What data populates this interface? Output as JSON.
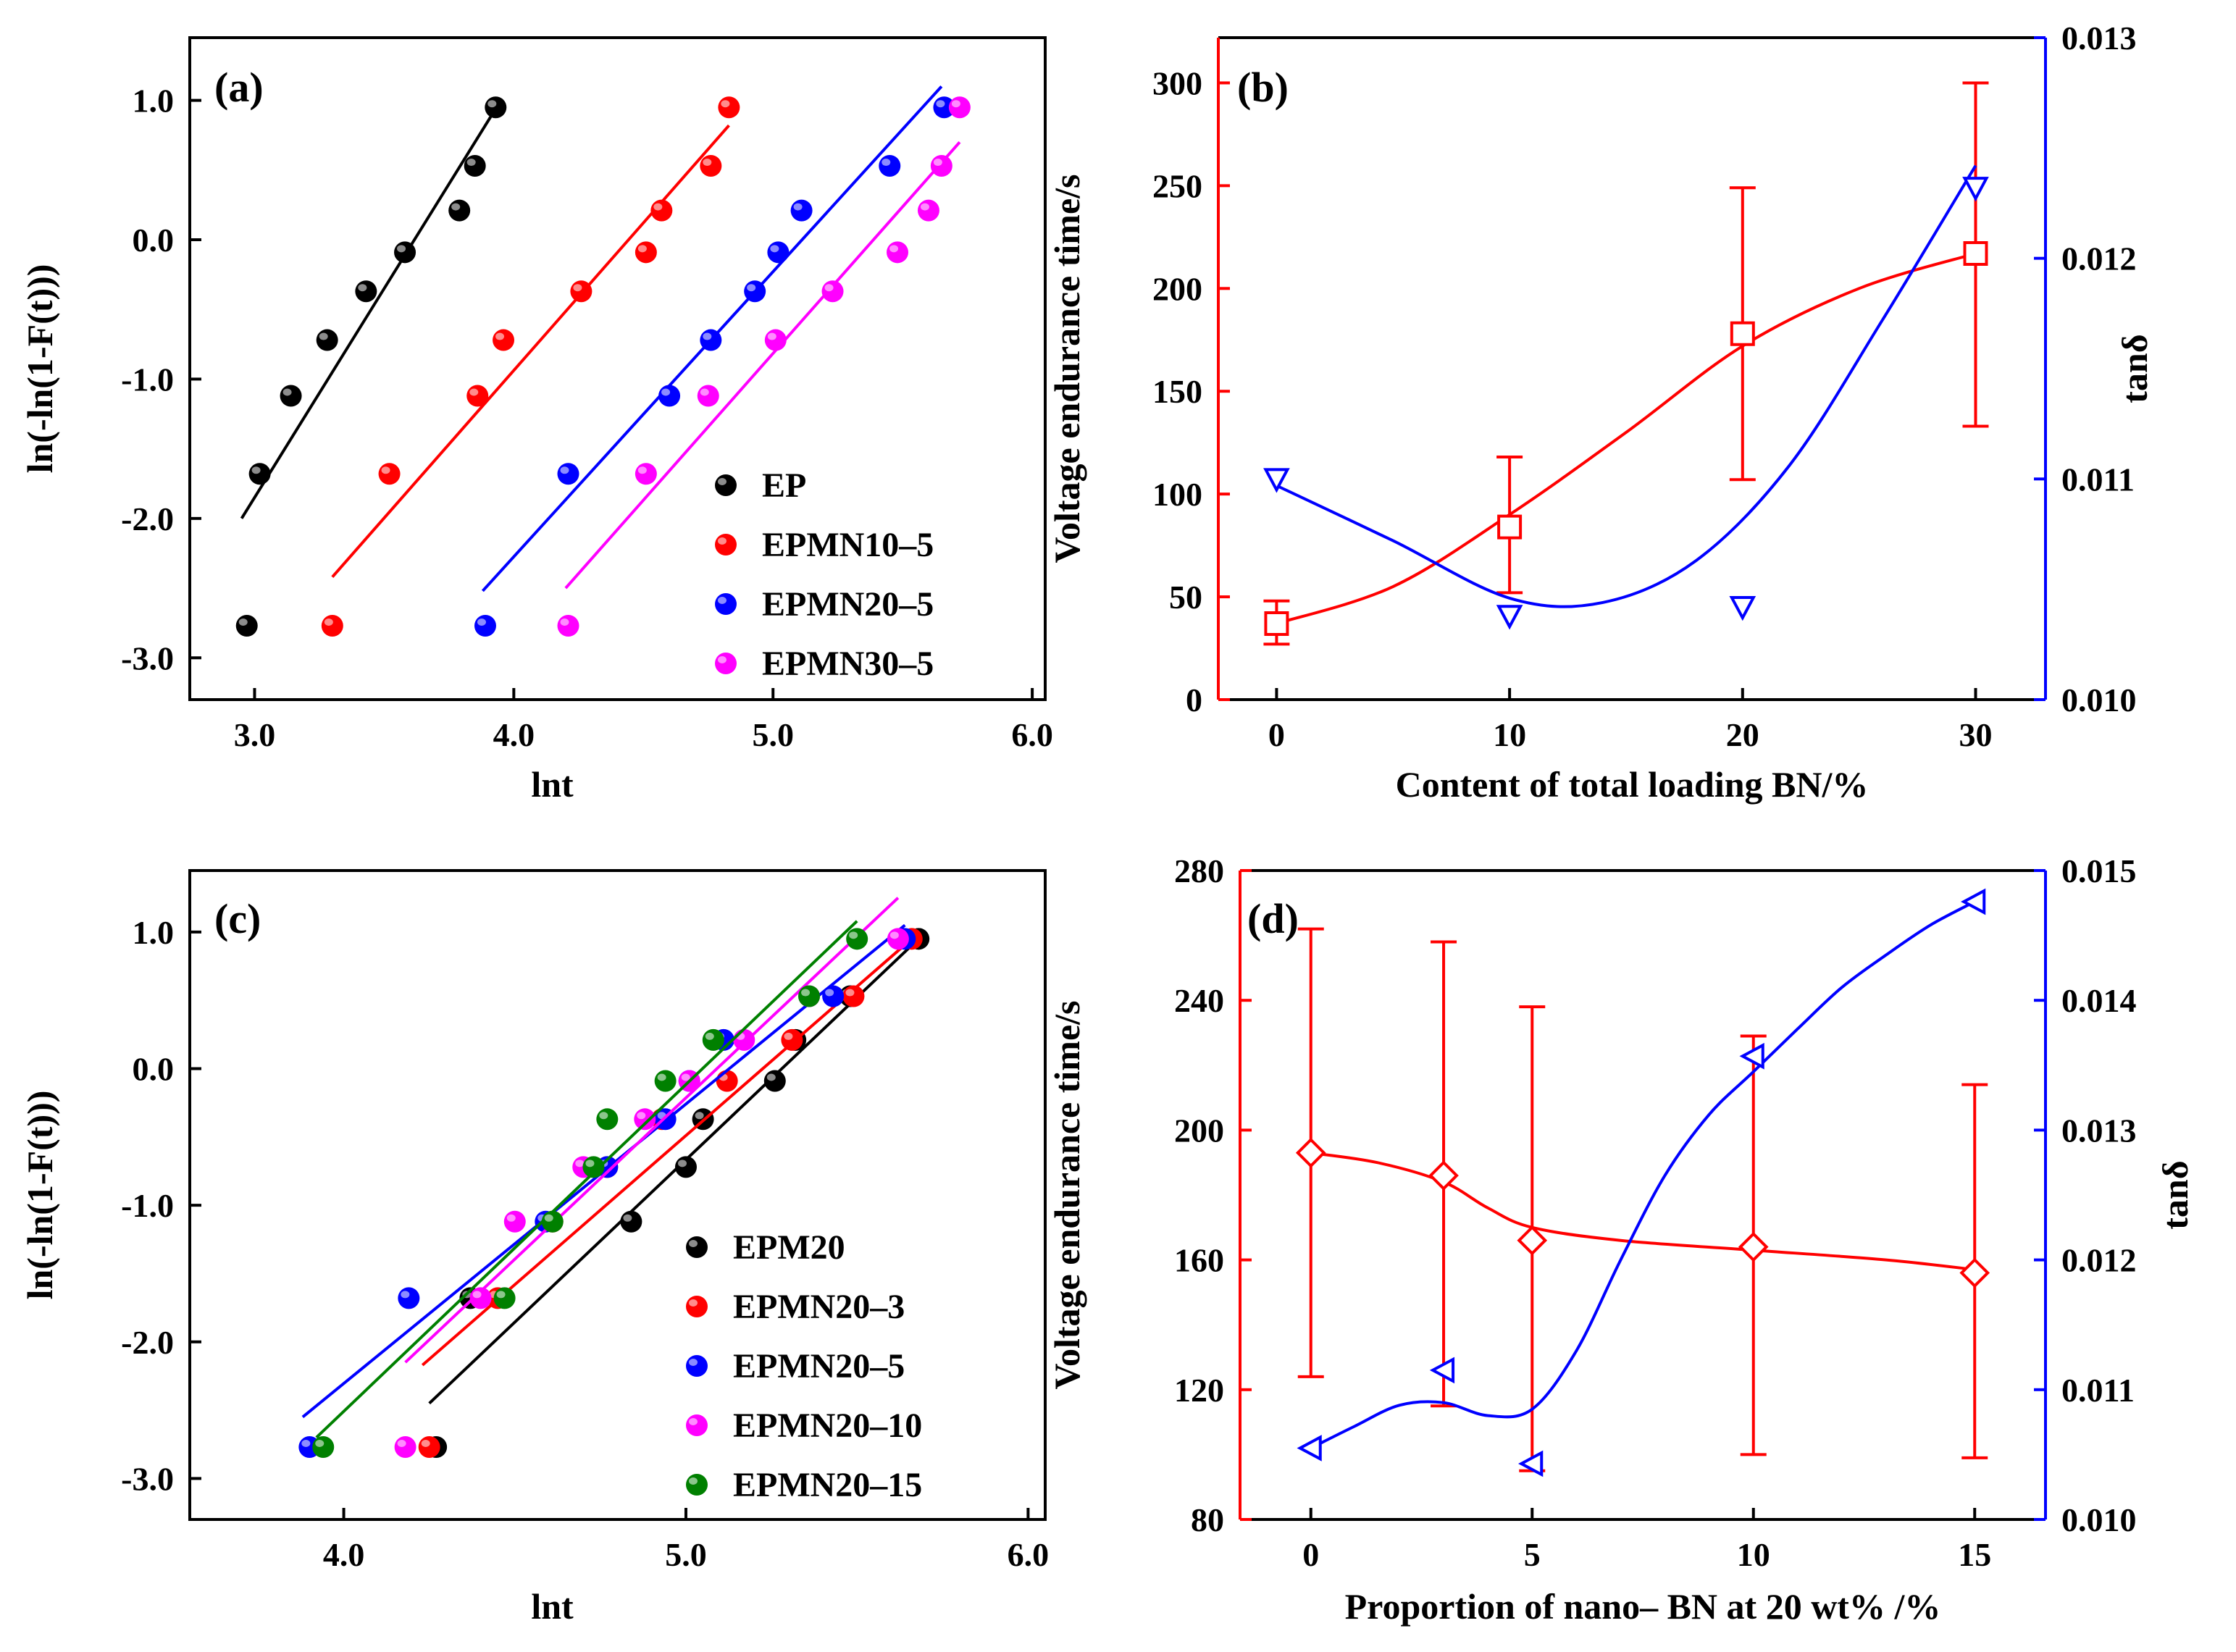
{
  "colors": {
    "black": "#000000",
    "red": "#ff0000",
    "blue": "#0000ff",
    "magenta": "#ff00ff",
    "green": "#008000",
    "darkRed": "#ff0000",
    "darkBlue": "#0000ff"
  },
  "chart_data": [
    {
      "id": "a",
      "type": "scatter",
      "panel_label": "(a)",
      "xlabel": "lnt",
      "ylabel": "ln(-ln(1-F(t)))",
      "xlim": [
        2.75,
        6.05
      ],
      "ylim": [
        -3.3,
        1.45
      ],
      "xticks": [
        3.0,
        4.0,
        5.0,
        6.0
      ],
      "xtick_labels": [
        "3.0",
        "4.0",
        "5.0",
        "6.0"
      ],
      "yticks": [
        1.0,
        0.0,
        -1.0,
        -2.0,
        -3.0
      ],
      "ytick_labels": [
        "1.0",
        "0.0",
        "-1.0",
        "-2.0",
        "-3.0"
      ],
      "legend_position": "bottom-right",
      "series": [
        {
          "name": "EP",
          "color": "#000000",
          "points": [
            [
              2.97,
              -2.77
            ],
            [
              3.02,
              -1.68
            ],
            [
              3.14,
              -1.12
            ],
            [
              3.28,
              -0.72
            ],
            [
              3.43,
              -0.37
            ],
            [
              3.58,
              -0.09
            ],
            [
              3.79,
              0.21
            ],
            [
              3.85,
              0.53
            ],
            [
              3.93,
              0.95
            ]
          ],
          "fit": [
            [
              2.95,
              -2.0
            ],
            [
              3.95,
              1.0
            ]
          ]
        },
        {
          "name": "EPMN10–5",
          "color": "#ff0000",
          "points": [
            [
              3.3,
              -2.77
            ],
            [
              3.52,
              -1.68
            ],
            [
              3.86,
              -1.12
            ],
            [
              3.96,
              -0.72
            ],
            [
              4.26,
              -0.37
            ],
            [
              4.51,
              -0.09
            ],
            [
              4.57,
              0.21
            ],
            [
              4.76,
              0.53
            ],
            [
              4.83,
              0.95
            ]
          ],
          "fit": [
            [
              3.3,
              -2.42
            ],
            [
              4.83,
              0.82
            ]
          ]
        },
        {
          "name": "EPMN20–5",
          "color": "#0000ff",
          "points": [
            [
              3.89,
              -2.77
            ],
            [
              4.21,
              -1.68
            ],
            [
              4.6,
              -1.12
            ],
            [
              4.76,
              -0.72
            ],
            [
              4.93,
              -0.37
            ],
            [
              5.02,
              -0.09
            ],
            [
              5.11,
              0.21
            ],
            [
              5.45,
              0.53
            ],
            [
              5.66,
              0.95
            ]
          ],
          "fit": [
            [
              3.88,
              -2.52
            ],
            [
              5.65,
              1.1
            ]
          ]
        },
        {
          "name": "EPMN30–5",
          "color": "#ff00ff",
          "points": [
            [
              4.21,
              -2.77
            ],
            [
              4.51,
              -1.68
            ],
            [
              4.75,
              -1.12
            ],
            [
              5.01,
              -0.72
            ],
            [
              5.23,
              -0.37
            ],
            [
              5.48,
              -0.09
            ],
            [
              5.6,
              0.21
            ],
            [
              5.65,
              0.53
            ],
            [
              5.72,
              0.95
            ]
          ],
          "fit": [
            [
              4.2,
              -2.5
            ],
            [
              5.72,
              0.7
            ]
          ]
        }
      ]
    },
    {
      "id": "b",
      "type": "line",
      "panel_label": "(b)",
      "xlabel": "Content of total loading BN/%",
      "ylabel": "Voltage endurance time/s",
      "y2label": "tanδ",
      "xlim": [
        -2.5,
        33
      ],
      "ylim": [
        0,
        322
      ],
      "y2lim": [
        0.01,
        0.013
      ],
      "xticks": [
        0,
        10,
        20,
        30
      ],
      "xtick_labels": [
        "0",
        "10",
        "20",
        "30"
      ],
      "yticks": [
        0,
        50,
        100,
        150,
        200,
        250,
        300
      ],
      "ytick_labels": [
        "0",
        "50",
        "100",
        "150",
        "200",
        "250",
        "300"
      ],
      "y2ticks": [
        0.01,
        0.011,
        0.012,
        0.013
      ],
      "y2tick_labels": [
        "0.010",
        "0.011",
        "0.012",
        "0.013"
      ],
      "series": [
        {
          "name": "Voltage endurance time",
          "axis": "left",
          "color": "#ff0000",
          "marker": "square",
          "x": [
            0,
            10,
            20,
            30
          ],
          "values": [
            37,
            84,
            178,
            217
          ],
          "err_low": [
            27,
            52,
            107,
            133
          ],
          "err_high": [
            48,
            118,
            249,
            300
          ],
          "curve": [
            [
              0,
              37
            ],
            [
              5,
              55
            ],
            [
              10,
              90
            ],
            [
              15,
              130
            ],
            [
              20,
              172
            ],
            [
              25,
              200
            ],
            [
              30,
              217
            ]
          ]
        },
        {
          "name": "tanδ",
          "axis": "right",
          "color": "#0000ff",
          "marker": "triangle-down",
          "x": [
            0,
            10,
            20,
            30
          ],
          "values": [
            0.011,
            0.01038,
            0.01042,
            0.01232
          ],
          "curve": [
            [
              0,
              0.01097
            ],
            [
              5,
              0.01072
            ],
            [
              10,
              0.01046
            ],
            [
              14,
              0.01044
            ],
            [
              18,
              0.01063
            ],
            [
              22,
              0.01106
            ],
            [
              26,
              0.01172
            ],
            [
              30,
              0.01242
            ]
          ]
        }
      ]
    },
    {
      "id": "c",
      "type": "scatter",
      "panel_label": "(c)",
      "xlabel": "lnt",
      "ylabel": "ln(-ln(1-F(t)))",
      "xlim": [
        3.55,
        6.05
      ],
      "ylim": [
        -3.3,
        1.45
      ],
      "xticks": [
        4.0,
        5.0,
        6.0
      ],
      "xtick_labels": [
        "4.0",
        "5.0",
        "6.0"
      ],
      "yticks": [
        1.0,
        0.0,
        -1.0,
        -2.0,
        -3.0
      ],
      "ytick_labels": [
        "1.0",
        "0.0",
        "-1.0",
        "-2.0",
        "-3.0"
      ],
      "legend_position": "bottom-right",
      "series": [
        {
          "name": "EPM20",
          "color": "#000000",
          "points": [
            [
              4.27,
              -2.77
            ],
            [
              4.37,
              -1.68
            ],
            [
              4.84,
              -1.12
            ],
            [
              5.0,
              -0.72
            ],
            [
              5.05,
              -0.37
            ],
            [
              5.26,
              -0.09
            ],
            [
              5.32,
              0.21
            ],
            [
              5.48,
              0.53
            ],
            [
              5.68,
              0.95
            ]
          ],
          "fit": [
            [
              4.25,
              -2.45
            ],
            [
              5.68,
              0.95
            ]
          ]
        },
        {
          "name": "EPMN20–3",
          "color": "#ff0000",
          "points": [
            [
              4.25,
              -2.77
            ],
            [
              4.45,
              -1.68
            ],
            [
              4.61,
              -1.12
            ],
            [
              4.77,
              -0.72
            ],
            [
              4.93,
              -0.37
            ],
            [
              5.12,
              -0.09
            ],
            [
              5.31,
              0.21
            ],
            [
              5.49,
              0.53
            ],
            [
              5.66,
              0.95
            ]
          ],
          "fit": [
            [
              4.23,
              -2.17
            ],
            [
              5.66,
              0.95
            ]
          ]
        },
        {
          "name": "EPMN20–5",
          "color": "#0000ff",
          "points": [
            [
              3.9,
              -2.77
            ],
            [
              4.19,
              -1.68
            ],
            [
              4.59,
              -1.12
            ],
            [
              4.77,
              -0.72
            ],
            [
              4.94,
              -0.37
            ],
            [
              5.01,
              -0.09
            ],
            [
              5.11,
              0.21
            ],
            [
              5.43,
              0.53
            ],
            [
              5.64,
              0.95
            ]
          ],
          "fit": [
            [
              3.88,
              -2.55
            ],
            [
              5.64,
              1.05
            ]
          ]
        },
        {
          "name": "EPMN20–10",
          "color": "#ff00ff",
          "points": [
            [
              4.18,
              -2.77
            ],
            [
              4.4,
              -1.68
            ],
            [
              4.5,
              -1.12
            ],
            [
              4.7,
              -0.72
            ],
            [
              4.88,
              -0.37
            ],
            [
              5.01,
              -0.09
            ],
            [
              5.17,
              0.21
            ],
            [
              5.36,
              0.53
            ],
            [
              5.62,
              0.95
            ]
          ],
          "fit": [
            [
              4.18,
              -2.15
            ],
            [
              5.62,
              1.25
            ]
          ]
        },
        {
          "name": "EPMN20–15",
          "color": "#008000",
          "points": [
            [
              3.94,
              -2.77
            ],
            [
              4.47,
              -1.68
            ],
            [
              4.61,
              -1.12
            ],
            [
              4.73,
              -0.72
            ],
            [
              4.77,
              -0.37
            ],
            [
              4.94,
              -0.09
            ],
            [
              5.08,
              0.21
            ],
            [
              5.36,
              0.53
            ],
            [
              5.5,
              0.95
            ]
          ],
          "fit": [
            [
              3.92,
              -2.7
            ],
            [
              5.5,
              1.08
            ]
          ]
        }
      ]
    },
    {
      "id": "d",
      "type": "line",
      "panel_label": "(d)",
      "xlabel": "Proportion of nano– BN at 20 wt% /%",
      "ylabel": "Voltage endurance time/s",
      "y2label": "tanδ",
      "xlim": [
        -1.6,
        16.6
      ],
      "ylim": [
        80,
        280
      ],
      "y2lim": [
        0.01,
        0.015
      ],
      "xticks": [
        0,
        5,
        10,
        15
      ],
      "xtick_labels": [
        "0",
        "5",
        "10",
        "15"
      ],
      "yticks": [
        80,
        120,
        160,
        200,
        240,
        280
      ],
      "ytick_labels": [
        "80",
        "120",
        "160",
        "200",
        "240",
        "280"
      ],
      "y2ticks": [
        0.01,
        0.011,
        0.012,
        0.013,
        0.014,
        0.015
      ],
      "y2tick_labels": [
        "0.010",
        "0.011",
        "0.012",
        "0.013",
        "0.014",
        "0.015"
      ],
      "series": [
        {
          "name": "Voltage endurance time",
          "axis": "left",
          "color": "#ff0000",
          "marker": "diamond",
          "x": [
            0,
            3,
            5,
            10,
            15
          ],
          "values": [
            193,
            186,
            166,
            164,
            156
          ],
          "err_low": [
            124,
            115,
            95,
            100,
            99
          ],
          "err_high": [
            262,
            258,
            238,
            229,
            214
          ],
          "curve": [
            [
              0,
              193
            ],
            [
              1.5,
              190
            ],
            [
              3,
              184
            ],
            [
              4,
              176
            ],
            [
              5,
              170
            ],
            [
              7,
              166
            ],
            [
              10,
              163
            ],
            [
              13,
              160
            ],
            [
              15,
              157
            ]
          ]
        },
        {
          "name": "tanδ",
          "axis": "right",
          "color": "#0000ff",
          "marker": "triangle-left",
          "x": [
            0,
            3,
            5,
            10,
            15
          ],
          "values": [
            0.01055,
            0.01115,
            0.01043,
            0.01357,
            0.01476
          ],
          "curve": [
            [
              0,
              0.01055
            ],
            [
              1,
              0.01072
            ],
            [
              2,
              0.01088
            ],
            [
              3,
              0.0109
            ],
            [
              4,
              0.0108
            ],
            [
              5,
              0.01085
            ],
            [
              6,
              0.0113
            ],
            [
              7,
              0.012
            ],
            [
              8,
              0.01265
            ],
            [
              9,
              0.01312
            ],
            [
              10,
              0.01345
            ],
            [
              11,
              0.01378
            ],
            [
              12,
              0.0141
            ],
            [
              13,
              0.01435
            ],
            [
              14,
              0.01458
            ],
            [
              15,
              0.01476
            ]
          ]
        }
      ]
    }
  ]
}
